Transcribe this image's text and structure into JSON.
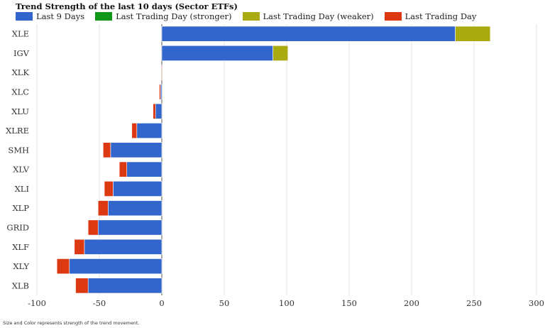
{
  "chart_data": {
    "type": "bar",
    "orientation": "horizontal",
    "stacked": true,
    "title": "Trend Strength of the last 10 days (Sector ETFs)",
    "footnote": "Size and Color represents strength of the trend movement.",
    "categories": [
      "XLE",
      "IGV",
      "XLK",
      "XLC",
      "XLU",
      "XLRE",
      "SMH",
      "XLV",
      "XLI",
      "XLP",
      "GRID",
      "XLF",
      "XLY",
      "XLB"
    ],
    "series": [
      {
        "name": "Last 9 Days",
        "color": "#3366cc",
        "values": [
          235,
          89,
          0,
          -1,
          -5,
          -20,
          -41,
          -28,
          -39,
          -43,
          -51,
          -62,
          -74,
          -59
        ]
      },
      {
        "name": "Last Trading Day (stronger)",
        "color": "#109618",
        "values": [
          0,
          0,
          0,
          0,
          0,
          0,
          0,
          0,
          0,
          0,
          0,
          0,
          0,
          0
        ]
      },
      {
        "name": "Last Trading Day (weaker)",
        "color": "#aaaa11",
        "values": [
          28,
          12,
          0,
          0,
          0,
          0,
          0,
          0,
          0,
          0,
          0,
          0,
          0,
          0
        ]
      },
      {
        "name": "Last Trading Day",
        "color": "#dc3912",
        "values": [
          0,
          0,
          -0.5,
          -1,
          -2,
          -4,
          -6,
          -6,
          -7,
          -8,
          -8,
          -8,
          -10,
          -10
        ]
      }
    ],
    "xlim": [
      -100,
      300
    ],
    "xticks": [
      -100,
      -50,
      0,
      50,
      100,
      150,
      200,
      250,
      300
    ],
    "xtick_labels": [
      "-100",
      "-50",
      "0",
      "50",
      "100",
      "150",
      "200",
      "250",
      "300"
    ],
    "grid": true,
    "legend_position": "top-left"
  }
}
